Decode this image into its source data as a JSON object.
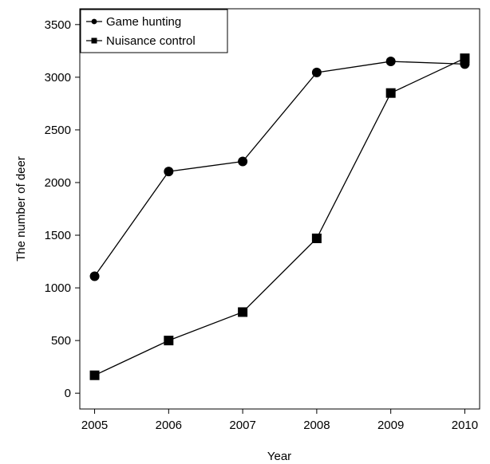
{
  "chart_data": {
    "type": "line",
    "title": "",
    "xlabel": "Year",
    "ylabel": "The number of deer",
    "x": [
      2005,
      2006,
      2007,
      2008,
      2009,
      2010
    ],
    "xticks": [
      "2005",
      "2006",
      "2007",
      "2008",
      "2009",
      "2010"
    ],
    "yticks": [
      "0",
      "500",
      "1000",
      "1500",
      "2000",
      "2500",
      "3000",
      "3500"
    ],
    "ylim": [
      -150,
      3650
    ],
    "xlim": [
      2004.8,
      2010.2
    ],
    "grid": false,
    "legend_position": "top-left",
    "series": [
      {
        "name": "Game hunting",
        "marker": "circle",
        "color": "#000000",
        "values": [
          1110,
          2105,
          2200,
          3045,
          3150,
          3125
        ]
      },
      {
        "name": "Nuisance control",
        "marker": "square",
        "color": "#000000",
        "values": [
          170,
          500,
          770,
          1470,
          2850,
          3180
        ]
      }
    ]
  }
}
